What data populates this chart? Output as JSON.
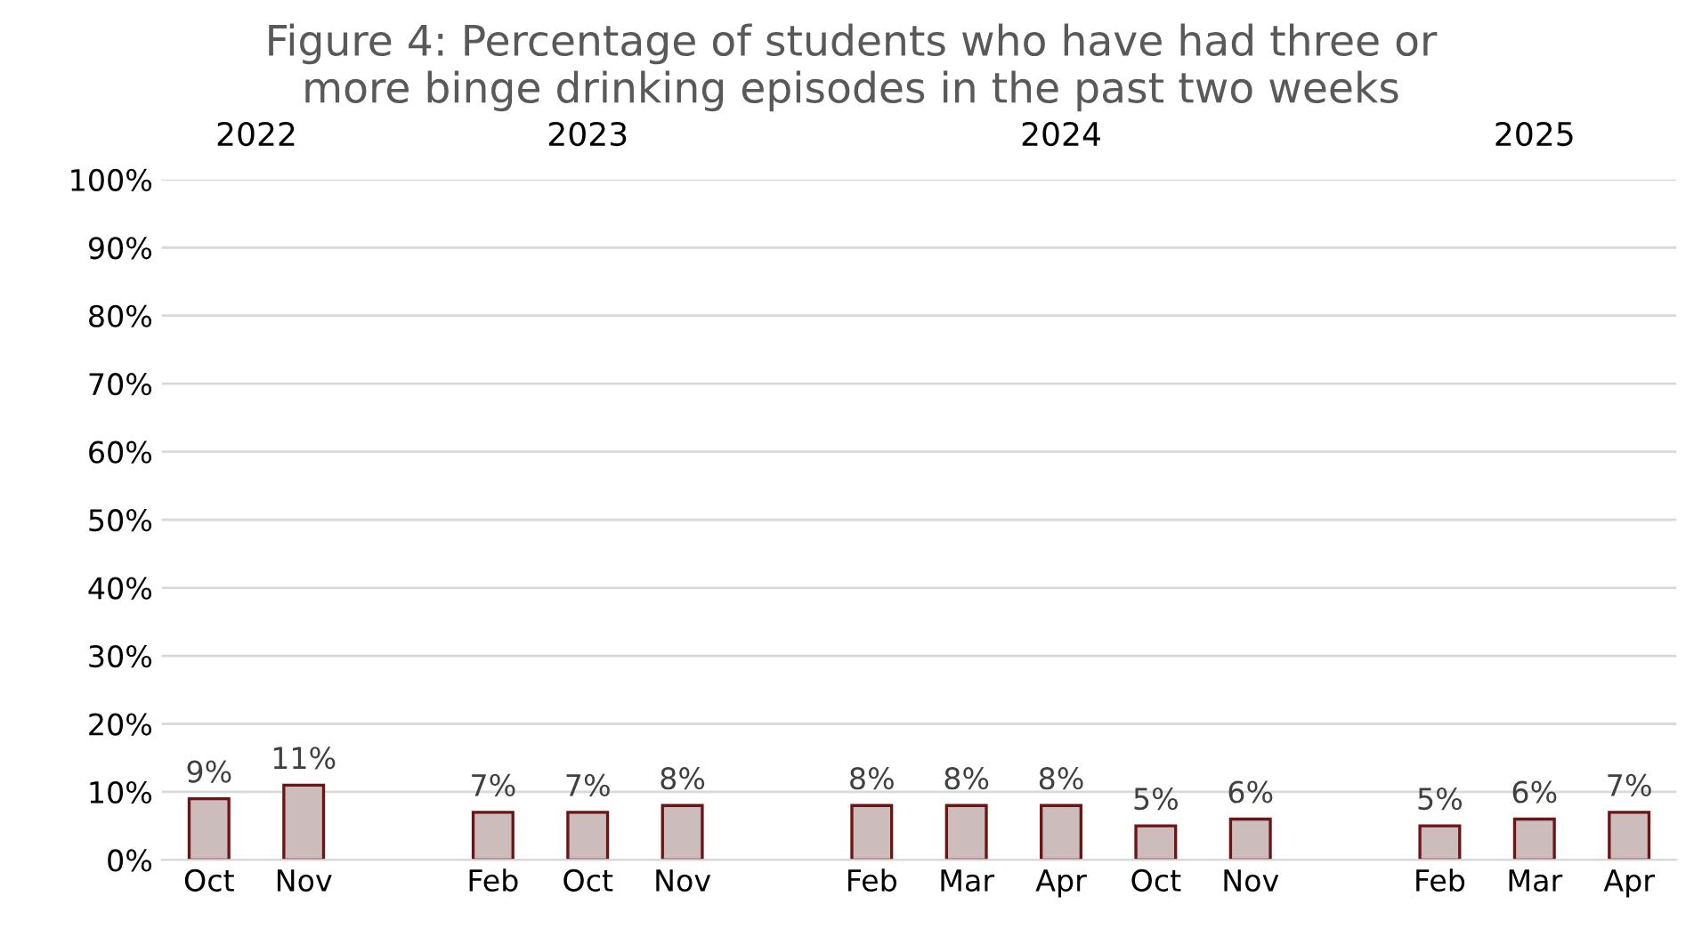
{
  "chart_data": {
    "type": "bar",
    "title": "Figure 4: Percentage of students who have had three or\nmore binge drinking episodes in the past two weeks",
    "categories": [
      "Oct",
      "Nov",
      null,
      "Feb",
      "Oct",
      "Nov",
      null,
      "Feb",
      "Mar",
      "Apr",
      "Oct",
      "Nov",
      null,
      "Feb",
      "Mar",
      "Apr"
    ],
    "values": [
      9,
      11,
      null,
      7,
      7,
      8,
      null,
      8,
      8,
      8,
      5,
      6,
      null,
      5,
      6,
      7
    ],
    "value_labels": [
      "9%",
      "11%",
      null,
      "7%",
      "7%",
      "8%",
      null,
      "8%",
      "8%",
      "8%",
      "5%",
      "6%",
      null,
      "5%",
      "6%",
      "7%"
    ],
    "color": "#cdbcbc",
    "annotations": [
      "2022",
      "2023",
      "2024",
      "2025"
    ],
    "ylim": [
      0,
      100
    ],
    "yticks": [
      {
        "value": 0,
        "label": "0%"
      },
      {
        "value": 10,
        "label": "10%"
      },
      {
        "value": 20,
        "label": "20%"
      },
      {
        "value": 30,
        "label": "30%"
      },
      {
        "value": 40,
        "label": "40%"
      },
      {
        "value": 50,
        "label": "50%"
      },
      {
        "value": 60,
        "label": "60%"
      },
      {
        "value": 70,
        "label": "70%"
      },
      {
        "value": 80,
        "label": "80%"
      },
      {
        "value": 90,
        "label": "90%"
      },
      {
        "value": 100,
        "label": "100%"
      }
    ],
    "grid": "y"
  }
}
